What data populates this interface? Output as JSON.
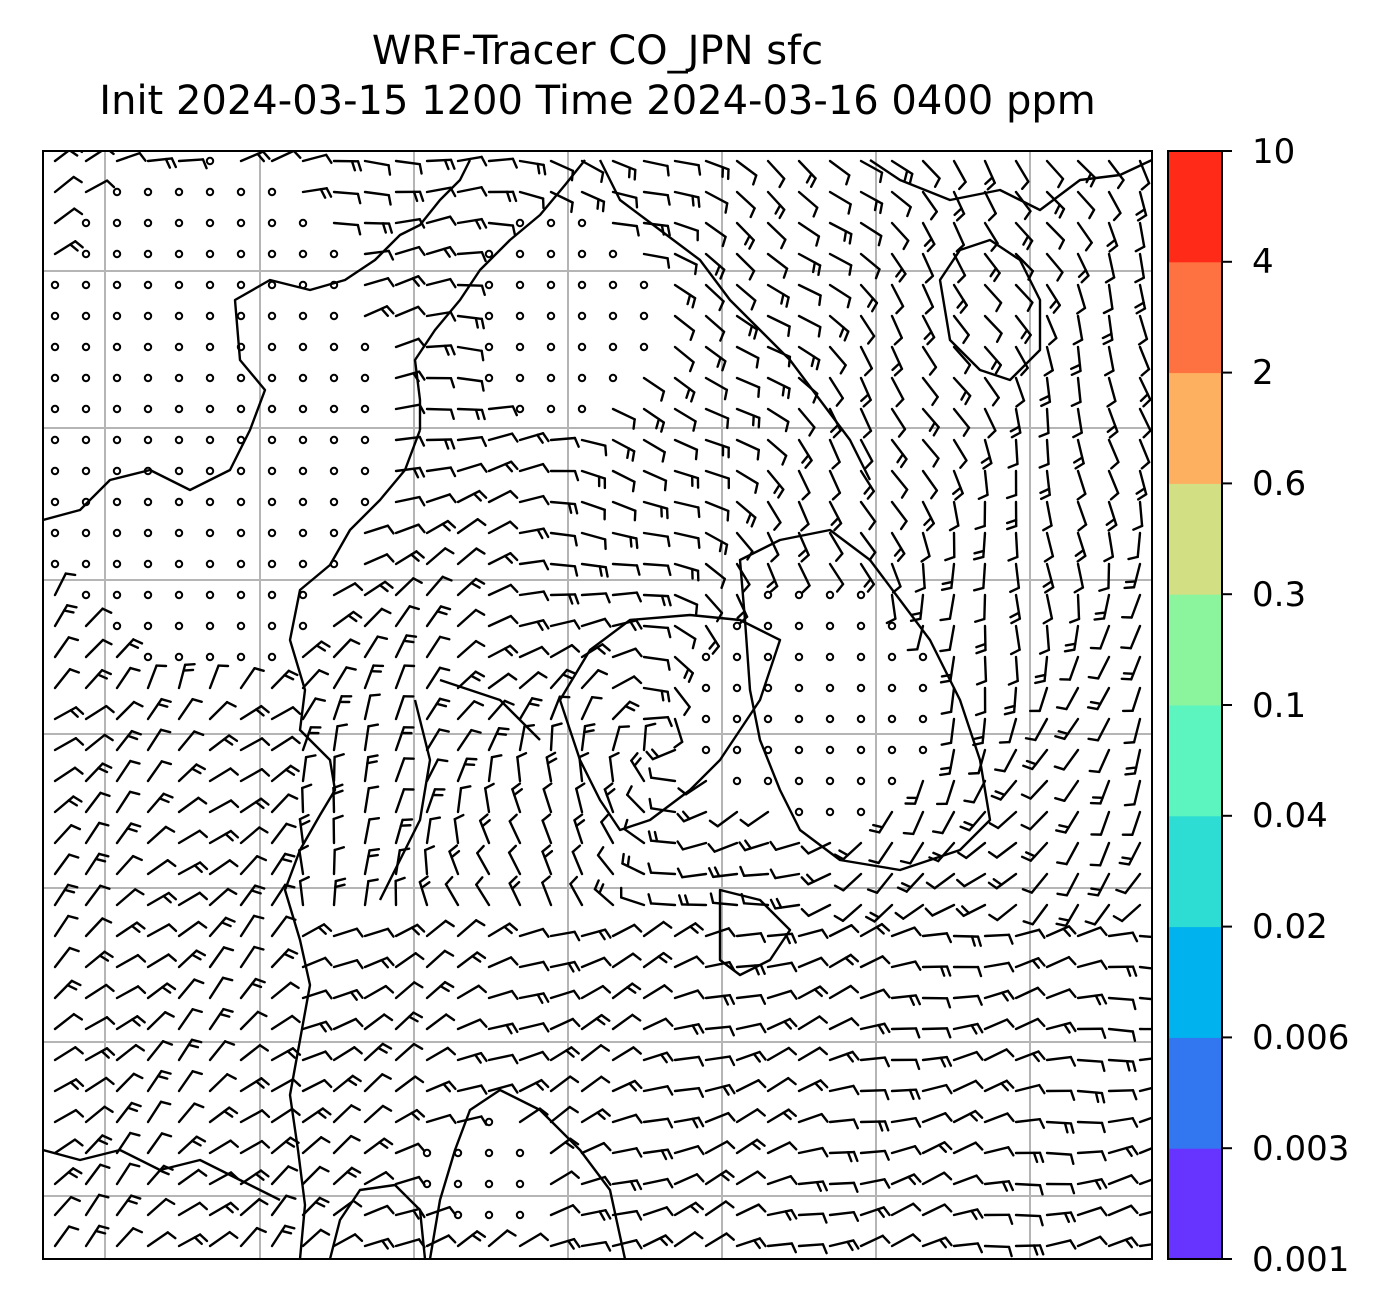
{
  "title": {
    "line1": "WRF-Tracer CO_JPN sfc",
    "line2": "Init 2024-03-15 1200 Time 2024-03-16 0400 ppm"
  },
  "colorbar": {
    "levels": [
      "0.001",
      "0.003",
      "0.006",
      "0.02",
      "0.04",
      "0.1",
      "0.3",
      "0.6",
      "2",
      "4",
      "10"
    ],
    "colors": [
      "#6633ff",
      "#3377f0",
      "#00b2ee",
      "#2ddcd2",
      "#5cf5c0",
      "#8bf59e",
      "#d2e083",
      "#fcb060",
      "#fd7240",
      "#ff2a18"
    ]
  },
  "map": {
    "gridlines": true,
    "gridline_color": "#b5b5b5",
    "symbols": "wind-barbs",
    "calm_symbol": "open-circle"
  }
}
